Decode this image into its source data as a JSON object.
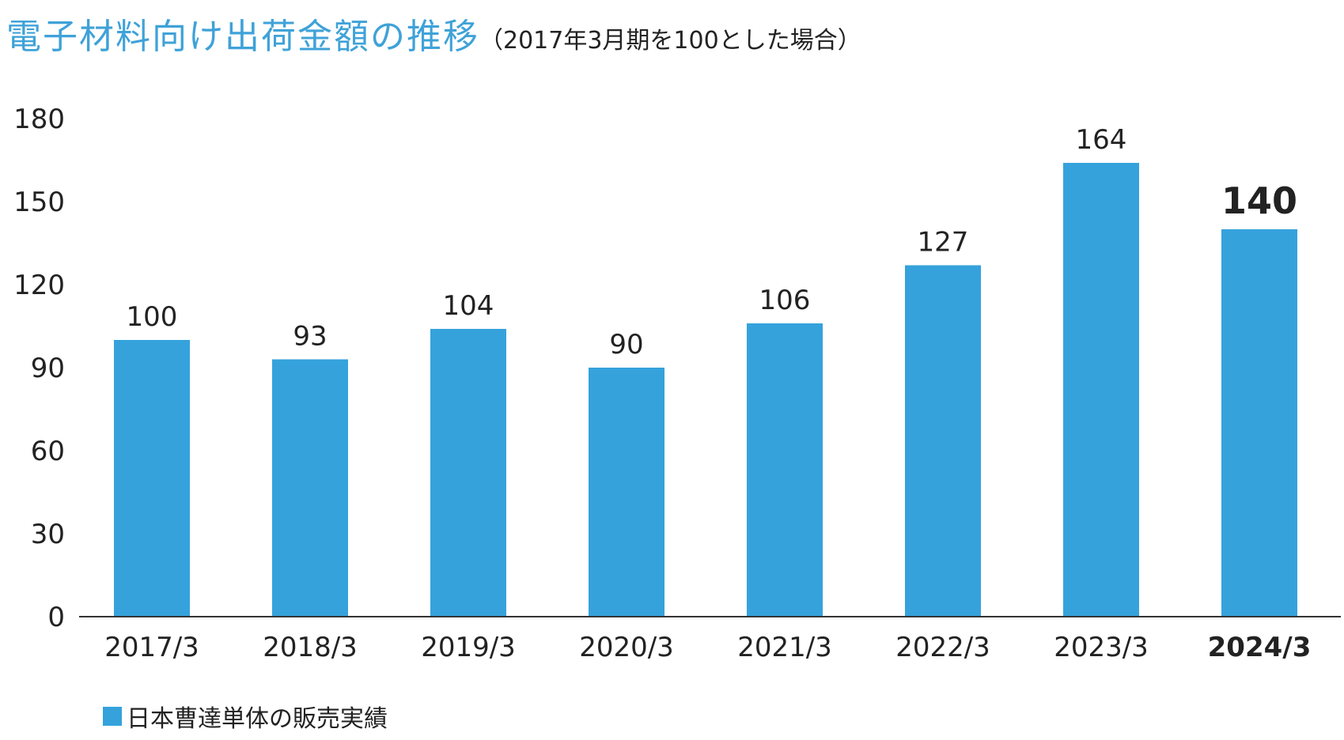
{
  "title": {
    "main": "電子材料向け出荷金額の推移",
    "sub": "（2017年3月期を100とした場合）"
  },
  "colors": {
    "bar": "#35a2dc",
    "title": "#3fa2d8",
    "axis": "#333333",
    "text": "#222222"
  },
  "legend": {
    "label": "日本曹達単体の販売実績"
  },
  "chart_data": {
    "type": "bar",
    "categories": [
      "2017/3",
      "2018/3",
      "2019/3",
      "2020/3",
      "2021/3",
      "2022/3",
      "2023/3",
      "2024/3"
    ],
    "values": [
      100,
      93,
      104,
      90,
      106,
      127,
      164,
      140
    ],
    "highlight_index": 7,
    "ylim": [
      0,
      180
    ],
    "yticks": [
      0,
      30,
      60,
      90,
      120,
      150,
      180
    ],
    "title": "電子材料向け出荷金額の推移",
    "xlabel": "",
    "ylabel": "",
    "series": [
      {
        "name": "日本曹達単体の販売実績",
        "values": [
          100,
          93,
          104,
          90,
          106,
          127,
          164,
          140
        ]
      }
    ]
  }
}
